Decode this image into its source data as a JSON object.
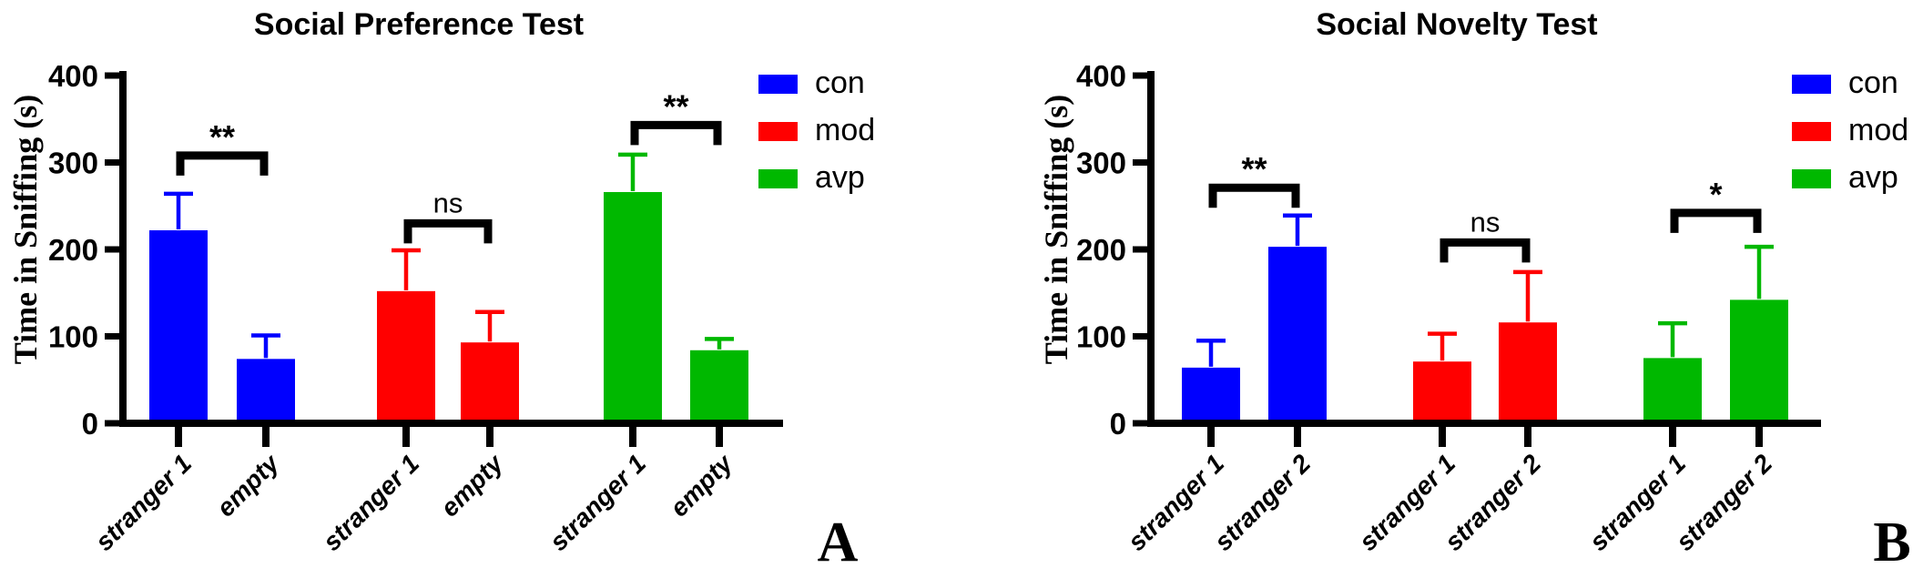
{
  "figure": {
    "background": "#ffffff",
    "axis_color": "#000000",
    "panel_labels": [
      "A",
      "B"
    ]
  },
  "chart_data": [
    {
      "type": "bar",
      "panel_label": "A",
      "title": "Social Preference Test",
      "xlabel": "",
      "ylabel": "Time in Sniffing (s)",
      "ylim": [
        0,
        400
      ],
      "yticks": [
        0,
        100,
        200,
        300,
        400
      ],
      "grid": false,
      "categories": [
        "stranger 1",
        "empty"
      ],
      "series": [
        {
          "name": "con",
          "color": "#0000ff",
          "values": [
            222,
            74
          ],
          "errors_upper": [
            42,
            27
          ]
        },
        {
          "name": "mod",
          "color": "#ff0000",
          "values": [
            152,
            93
          ],
          "errors_upper": [
            47,
            35
          ]
        },
        {
          "name": "avp",
          "color": "#00b800",
          "values": [
            266,
            84
          ],
          "errors_upper": [
            43,
            13
          ]
        }
      ],
      "significance": [
        {
          "series": "con",
          "label": "**",
          "bracket_y": 308
        },
        {
          "series": "mod",
          "label": "ns",
          "bracket_y": 230
        },
        {
          "series": "avp",
          "label": "**",
          "bracket_y": 343
        }
      ],
      "legend": {
        "position": "top-right",
        "entries": [
          {
            "label": "con",
            "color": "#0000ff"
          },
          {
            "label": "mod",
            "color": "#ff0000"
          },
          {
            "label": "avp",
            "color": "#00b800"
          }
        ]
      }
    },
    {
      "type": "bar",
      "panel_label": "B",
      "title": "Social Novelty Test",
      "xlabel": "",
      "ylabel": "Time in Sniffing (s)",
      "ylim": [
        0,
        400
      ],
      "yticks": [
        0,
        100,
        200,
        300,
        400
      ],
      "grid": false,
      "categories": [
        "stranger 1",
        "stranger 2"
      ],
      "series": [
        {
          "name": "con",
          "color": "#0000ff",
          "values": [
            64,
            203
          ],
          "errors_upper": [
            31,
            36
          ]
        },
        {
          "name": "mod",
          "color": "#ff0000",
          "values": [
            71,
            116
          ],
          "errors_upper": [
            32,
            58
          ]
        },
        {
          "name": "avp",
          "color": "#00b800",
          "values": [
            75,
            142
          ],
          "errors_upper": [
            40,
            61
          ]
        }
      ],
      "significance": [
        {
          "series": "con",
          "label": "**",
          "bracket_y": 271
        },
        {
          "series": "mod",
          "label": "ns",
          "bracket_y": 208
        },
        {
          "series": "avp",
          "label": "*",
          "bracket_y": 242
        }
      ],
      "legend": {
        "position": "top-right",
        "entries": [
          {
            "label": "con",
            "color": "#0000ff"
          },
          {
            "label": "mod",
            "color": "#ff0000"
          },
          {
            "label": "avp",
            "color": "#00b800"
          }
        ]
      }
    }
  ]
}
